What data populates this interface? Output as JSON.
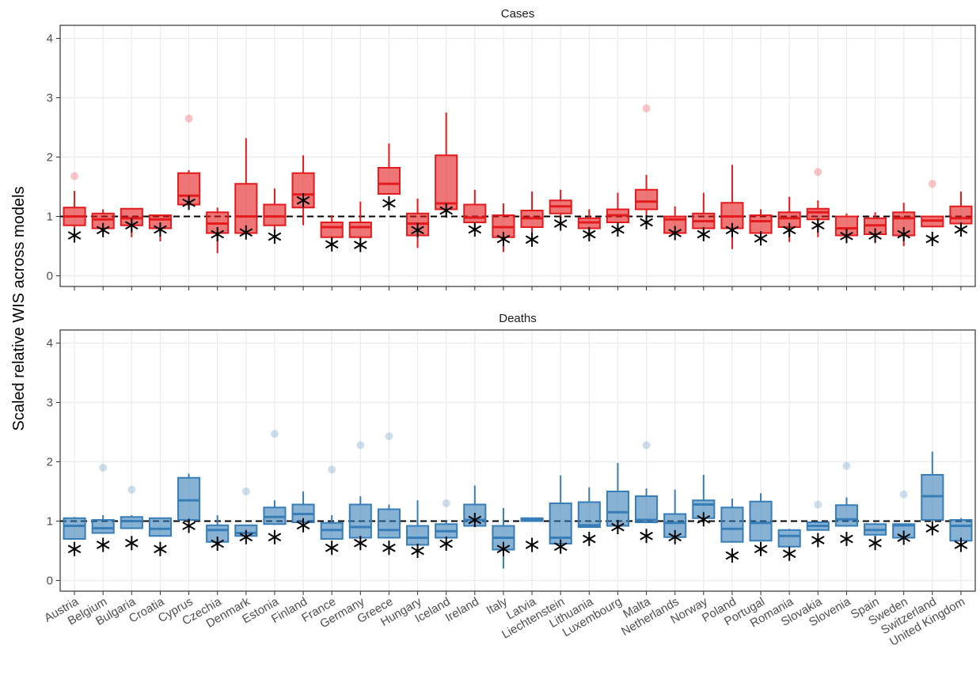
{
  "chart_data": [
    {
      "type": "box",
      "title": "Cases",
      "ylabel": "Scaled relative WIS across models",
      "color": "#e41a1c",
      "ylim": [
        -0.18,
        4.22
      ],
      "yticks": [
        0,
        1,
        2,
        3,
        4
      ],
      "hline": 1,
      "grid": true,
      "low": [
        0.75,
        0.72,
        0.65,
        0.58,
        1.2,
        0.38,
        0.72,
        0.72,
        0.85,
        0.6,
        0.6,
        1.38,
        0.47,
        1.05,
        0.8,
        0.4,
        0.68,
        0.9,
        0.72,
        0.82,
        0.95,
        0.68,
        0.68,
        0.45,
        0.68,
        0.57,
        0.65,
        0.62,
        0.55,
        0.5,
        0.83,
        0.78
      ],
      "q1": [
        0.85,
        0.8,
        0.85,
        0.8,
        1.2,
        0.72,
        0.72,
        0.85,
        1.15,
        0.65,
        0.65,
        1.38,
        0.68,
        1.12,
        0.9,
        0.65,
        0.82,
        1.05,
        0.8,
        0.9,
        1.12,
        0.72,
        0.8,
        0.8,
        0.72,
        0.82,
        0.95,
        0.68,
        0.7,
        0.68,
        0.83,
        0.88
      ],
      "median": [
        1.0,
        0.95,
        0.97,
        0.95,
        1.35,
        0.88,
        1.0,
        1.0,
        1.37,
        0.82,
        0.82,
        1.55,
        0.88,
        1.22,
        0.98,
        0.82,
        0.97,
        1.17,
        0.9,
        1.02,
        1.25,
        0.95,
        0.92,
        1.0,
        0.92,
        0.97,
        1.07,
        0.8,
        0.85,
        0.97,
        0.93,
        0.97
      ],
      "q3": [
        1.15,
        1.05,
        1.13,
        1.02,
        1.73,
        1.07,
        1.55,
        1.2,
        1.73,
        0.9,
        0.9,
        1.82,
        1.05,
        2.03,
        1.2,
        1.02,
        1.1,
        1.27,
        0.97,
        1.12,
        1.45,
        1.0,
        1.05,
        1.23,
        1.02,
        1.07,
        1.13,
        1.0,
        0.97,
        1.07,
        1.0,
        1.17
      ],
      "high": [
        1.43,
        1.12,
        1.13,
        1.02,
        1.78,
        1.15,
        2.32,
        1.47,
        2.03,
        1.02,
        1.25,
        2.23,
        1.3,
        2.75,
        1.45,
        1.22,
        1.42,
        1.45,
        1.12,
        1.4,
        1.7,
        1.17,
        1.4,
        1.87,
        1.12,
        1.33,
        1.27,
        1.05,
        1.07,
        1.23,
        1.0,
        1.42
      ],
      "outliers": [
        [
          1.68
        ],
        [],
        [],
        [],
        [
          2.65
        ],
        [],
        [],
        [],
        [],
        [],
        [],
        [],
        [],
        [],
        [],
        [],
        [],
        [],
        [],
        [],
        [
          2.82
        ],
        [],
        [],
        [],
        [],
        [],
        [
          1.75
        ],
        [],
        [],
        [],
        [
          1.55
        ],
        []
      ],
      "points": [
        0.68,
        0.77,
        0.85,
        0.78,
        1.23,
        0.7,
        0.73,
        0.66,
        1.27,
        0.53,
        0.52,
        1.22,
        0.77,
        1.1,
        0.78,
        0.62,
        0.61,
        0.88,
        0.7,
        0.78,
        0.9,
        0.72,
        0.7,
        0.77,
        0.63,
        0.77,
        0.85,
        0.67,
        0.68,
        0.7,
        0.62,
        0.78
      ]
    },
    {
      "type": "box",
      "title": "Deaths",
      "color": "#377eb8",
      "ylim": [
        -0.18,
        4.22
      ],
      "yticks": [
        0,
        1,
        2,
        3,
        4
      ],
      "hline": 1,
      "grid": true,
      "categories": [
        "Austria",
        "Belgium",
        "Bulgaria",
        "Croatia",
        "Cyprus",
        "Czechia",
        "Denmark",
        "Estonia",
        "Finland",
        "France",
        "Germany",
        "Greece",
        "Hungary",
        "Iceland",
        "Ireland",
        "Italy",
        "Latvia",
        "Liechtenstein",
        "Lithuania",
        "Luxembourg",
        "Malta",
        "Netherlands",
        "Norway",
        "Poland",
        "Portugal",
        "Romania",
        "Slovakia",
        "Slovenia",
        "Spain",
        "Sweden",
        "Switzerland",
        "United Kingdom"
      ],
      "low": [
        0.7,
        0.8,
        0.88,
        0.75,
        1.02,
        0.65,
        0.75,
        0.95,
        0.98,
        0.7,
        0.72,
        0.72,
        0.6,
        0.72,
        0.92,
        0.2,
        1.0,
        0.62,
        0.9,
        0.92,
        0.98,
        0.73,
        1.05,
        0.65,
        0.67,
        0.57,
        0.85,
        0.92,
        0.77,
        0.72,
        1.02,
        0.67
      ],
      "q1": [
        0.7,
        0.8,
        0.88,
        0.75,
        1.02,
        0.65,
        0.75,
        0.95,
        0.98,
        0.7,
        0.72,
        0.72,
        0.6,
        0.72,
        0.92,
        0.52,
        1.0,
        0.62,
        0.9,
        0.92,
        0.98,
        0.73,
        1.05,
        0.65,
        0.67,
        0.57,
        0.85,
        0.92,
        0.77,
        0.72,
        1.02,
        0.67
      ],
      "median": [
        0.92,
        0.88,
        1.0,
        0.87,
        1.35,
        0.85,
        0.8,
        1.07,
        1.12,
        0.85,
        0.9,
        0.85,
        0.72,
        0.83,
        1.02,
        0.72,
        1.02,
        0.72,
        0.93,
        1.15,
        1.02,
        0.97,
        1.28,
        0.87,
        0.97,
        0.75,
        0.92,
        1.03,
        0.85,
        0.93,
        1.42,
        0.92
      ],
      "q3": [
        1.05,
        1.02,
        1.07,
        1.05,
        1.73,
        0.93,
        0.93,
        1.23,
        1.28,
        0.97,
        1.28,
        1.2,
        0.92,
        0.95,
        1.28,
        0.92,
        1.05,
        1.3,
        1.32,
        1.5,
        1.42,
        1.12,
        1.35,
        1.23,
        1.33,
        0.85,
        0.98,
        1.27,
        0.95,
        0.95,
        1.78,
        1.02
      ],
      "high": [
        1.07,
        1.1,
        1.1,
        1.05,
        1.8,
        1.1,
        0.93,
        1.35,
        1.5,
        1.1,
        1.42,
        1.28,
        1.35,
        1.0,
        1.6,
        1.22,
        1.05,
        1.77,
        1.57,
        1.98,
        1.55,
        1.53,
        1.78,
        1.38,
        1.47,
        0.87,
        1.0,
        1.4,
        0.97,
        0.95,
        2.17,
        1.05
      ],
      "outliers": [
        [],
        [
          1.9
        ],
        [
          1.53
        ],
        [],
        [],
        [],
        [
          1.5
        ],
        [
          2.47
        ],
        [],
        [
          1.87
        ],
        [
          2.28
        ],
        [
          2.43
        ],
        [],
        [
          1.3
        ],
        [],
        [],
        [],
        [],
        [],
        [],
        [
          2.28
        ],
        [],
        [],
        [],
        [],
        [],
        [
          1.28
        ],
        [
          1.93
        ],
        [],
        [
          1.45
        ],
        [],
        []
      ],
      "points": [
        0.53,
        0.6,
        0.63,
        0.53,
        0.92,
        0.62,
        0.73,
        0.73,
        0.93,
        0.55,
        0.63,
        0.55,
        0.5,
        0.62,
        1.02,
        0.53,
        0.6,
        0.57,
        0.7,
        0.9,
        0.75,
        0.73,
        1.03,
        0.42,
        0.53,
        0.45,
        0.68,
        0.7,
        0.63,
        0.72,
        0.88,
        0.6
      ]
    }
  ]
}
